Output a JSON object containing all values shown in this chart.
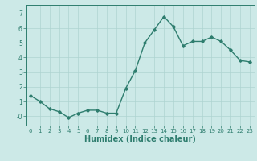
{
  "x": [
    0,
    1,
    2,
    3,
    4,
    5,
    6,
    7,
    8,
    9,
    10,
    11,
    12,
    13,
    14,
    15,
    16,
    17,
    18,
    19,
    20,
    21,
    22,
    23
  ],
  "y": [
    1.4,
    1.0,
    0.5,
    0.3,
    -0.1,
    0.2,
    0.4,
    0.4,
    0.2,
    0.2,
    1.9,
    3.1,
    5.0,
    5.9,
    6.8,
    6.1,
    4.8,
    5.1,
    5.1,
    5.4,
    5.1,
    4.5,
    3.8,
    3.7
  ],
  "line_color": "#2e7d6e",
  "marker": "D",
  "marker_size": 1.8,
  "line_width": 1.0,
  "bg_color": "#cce9e7",
  "grid_color": "#aed4d1",
  "axis_color": "#2e7d6e",
  "xlabel": "Humidex (Indice chaleur)",
  "xlabel_fontsize": 7,
  "ylabel_ticks": [
    0,
    1,
    2,
    3,
    4,
    5,
    6,
    7
  ],
  "ytick_labels": [
    "-0",
    "1",
    "2",
    "3",
    "4",
    "5",
    "6",
    "7"
  ],
  "xlim": [
    -0.5,
    23.5
  ],
  "ylim": [
    -0.65,
    7.6
  ],
  "xtick_labels": [
    "0",
    "1",
    "2",
    "3",
    "4",
    "5",
    "6",
    "7",
    "8",
    "9",
    "10",
    "11",
    "12",
    "13",
    "14",
    "15",
    "16",
    "17",
    "18",
    "19",
    "20",
    "21",
    "22",
    "23"
  ]
}
